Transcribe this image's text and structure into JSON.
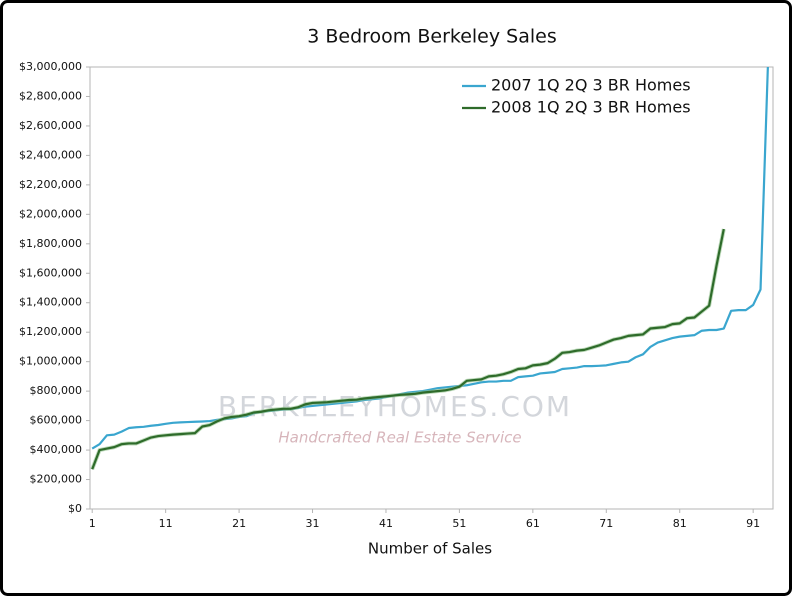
{
  "chart_data": {
    "type": "line",
    "title": "3 Bedroom Berkeley Sales",
    "xlabel": "Number of Sales",
    "watermark": "BERKELEYHOMES.COM",
    "watermark_tagline": "Handcrafted Real Estate Service",
    "x": [
      1,
      2,
      3,
      4,
      5,
      6,
      7,
      8,
      9,
      10,
      11,
      12,
      13,
      14,
      15,
      16,
      17,
      18,
      19,
      20,
      21,
      22,
      23,
      24,
      25,
      26,
      27,
      28,
      29,
      30,
      31,
      32,
      33,
      34,
      35,
      36,
      37,
      38,
      39,
      40,
      41,
      42,
      43,
      44,
      45,
      46,
      47,
      48,
      49,
      50,
      51,
      52,
      53,
      54,
      55,
      56,
      57,
      58,
      59,
      60,
      61,
      62,
      63,
      64,
      65,
      66,
      67,
      68,
      69,
      70,
      71,
      72,
      73,
      74,
      75,
      76,
      77,
      78,
      79,
      80,
      81,
      82,
      83,
      84,
      85,
      86,
      87,
      88,
      89,
      90,
      91,
      92,
      93
    ],
    "series": [
      {
        "name": "2007 1Q 2Q 3 BR Homes",
        "color": "#3aa6cf",
        "values": [
          410000,
          440000,
          500000,
          505000,
          525000,
          550000,
          555000,
          558000,
          565000,
          570000,
          578000,
          585000,
          588000,
          590000,
          592000,
          594000,
          597000,
          605000,
          610000,
          615000,
          625000,
          630000,
          650000,
          660000,
          665000,
          670000,
          675000,
          678000,
          685000,
          695000,
          700000,
          705000,
          710000,
          715000,
          720000,
          725000,
          730000,
          740000,
          745000,
          750000,
          760000,
          770000,
          780000,
          790000,
          795000,
          800000,
          810000,
          820000,
          825000,
          830000,
          835000,
          840000,
          850000,
          860000,
          865000,
          865000,
          870000,
          870000,
          895000,
          900000,
          905000,
          920000,
          925000,
          930000,
          950000,
          955000,
          960000,
          970000,
          970000,
          972000,
          975000,
          985000,
          995000,
          1000000,
          1030000,
          1050000,
          1100000,
          1130000,
          1145000,
          1160000,
          1170000,
          1175000,
          1180000,
          1210000,
          1215000,
          1215000,
          1225000,
          1345000,
          1350000,
          1350000,
          1385000,
          1490000,
          3000000
        ]
      },
      {
        "name": "2008 1Q 2Q 3 BR Homes",
        "color": "#2e6b2a",
        "values": [
          270000,
          400000,
          410000,
          420000,
          440000,
          445000,
          445000,
          465000,
          485000,
          495000,
          500000,
          505000,
          508000,
          512000,
          515000,
          560000,
          570000,
          595000,
          615000,
          625000,
          630000,
          640000,
          655000,
          660000,
          670000,
          675000,
          680000,
          680000,
          690000,
          710000,
          720000,
          722000,
          725000,
          730000,
          735000,
          740000,
          742000,
          750000,
          755000,
          760000,
          765000,
          770000,
          775000,
          778000,
          782000,
          790000,
          795000,
          800000,
          805000,
          815000,
          830000,
          870000,
          875000,
          880000,
          900000,
          905000,
          915000,
          930000,
          950000,
          955000,
          975000,
          980000,
          990000,
          1020000,
          1060000,
          1065000,
          1075000,
          1080000,
          1095000,
          1110000,
          1130000,
          1150000,
          1160000,
          1175000,
          1180000,
          1185000,
          1225000,
          1230000,
          1235000,
          1255000,
          1260000,
          1295000,
          1300000,
          1340000,
          1380000,
          1650000,
          1900000,
          null,
          null,
          null,
          null,
          null,
          null
        ]
      }
    ],
    "xlim": [
      0.7,
      93.7
    ],
    "xticks": [
      1,
      11,
      21,
      31,
      41,
      51,
      61,
      71,
      81,
      91
    ],
    "ylim": [
      0,
      3000000
    ],
    "yticks": [
      {
        "value": 0,
        "label": "$0"
      },
      {
        "value": 200000,
        "label": "$200,000"
      },
      {
        "value": 400000,
        "label": "$400,000"
      },
      {
        "value": 600000,
        "label": "$600,000"
      },
      {
        "value": 800000,
        "label": "$800,000"
      },
      {
        "value": 1000000,
        "label": "$1,000,000"
      },
      {
        "value": 1200000,
        "label": "$1,200,000"
      },
      {
        "value": 1400000,
        "label": "$1,400,000"
      },
      {
        "value": 1600000,
        "label": "$1,600,000"
      },
      {
        "value": 1800000,
        "label": "$1,800,000"
      },
      {
        "value": 2000000,
        "label": "$2,000,000"
      },
      {
        "value": 2200000,
        "label": "$2,200,000"
      },
      {
        "value": 2400000,
        "label": "$2,400,000"
      },
      {
        "value": 2600000,
        "label": "$2,600,000"
      },
      {
        "value": 2800000,
        "label": "$2,800,000"
      },
      {
        "value": 3000000,
        "label": "$3,000,000"
      }
    ],
    "grid": false,
    "legend": "top-right"
  }
}
